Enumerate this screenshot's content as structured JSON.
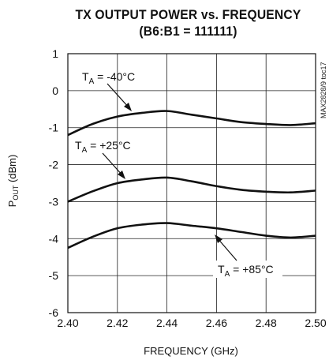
{
  "chart_data": {
    "type": "line",
    "title": "TX OUTPUT POWER vs. FREQUENCY",
    "subtitle": "(B6:B1 = 111111)",
    "xlabel": "FREQUENCY (GHz)",
    "ylabel_main": "P",
    "ylabel_sub": "OUT",
    "ylabel_tail": " (dBm)",
    "xlim": [
      2.4,
      2.5
    ],
    "ylim": [
      -6,
      1
    ],
    "x_ticks": [
      "2.40",
      "2.42",
      "2.44",
      "2.46",
      "2.48",
      "2.50"
    ],
    "y_ticks": [
      "1",
      "0",
      "-1",
      "-2",
      "-3",
      "-4",
      "-5",
      "-6"
    ],
    "grid": true,
    "side_note": "MAX2828/9 toc17",
    "series": [
      {
        "name": "T",
        "name_sub": "A",
        "name_tail": " = -40°C",
        "x": [
          2.4,
          2.41,
          2.42,
          2.43,
          2.44,
          2.45,
          2.46,
          2.47,
          2.48,
          2.49,
          2.5
        ],
        "values": [
          -1.2,
          -0.9,
          -0.7,
          -0.6,
          -0.55,
          -0.65,
          -0.75,
          -0.85,
          -0.9,
          -0.93,
          -0.88
        ]
      },
      {
        "name": "T",
        "name_sub": "A",
        "name_tail": " = +25°C",
        "x": [
          2.4,
          2.41,
          2.42,
          2.43,
          2.44,
          2.45,
          2.46,
          2.47,
          2.48,
          2.49,
          2.5
        ],
        "values": [
          -3.0,
          -2.72,
          -2.5,
          -2.4,
          -2.35,
          -2.45,
          -2.58,
          -2.68,
          -2.73,
          -2.75,
          -2.7
        ]
      },
      {
        "name": "T",
        "name_sub": "A",
        "name_tail": " = +85°C",
        "x": [
          2.4,
          2.41,
          2.42,
          2.43,
          2.44,
          2.45,
          2.46,
          2.47,
          2.48,
          2.49,
          2.5
        ],
        "values": [
          -4.25,
          -3.95,
          -3.72,
          -3.62,
          -3.58,
          -3.65,
          -3.72,
          -3.82,
          -3.92,
          -3.97,
          -3.92
        ]
      }
    ]
  }
}
